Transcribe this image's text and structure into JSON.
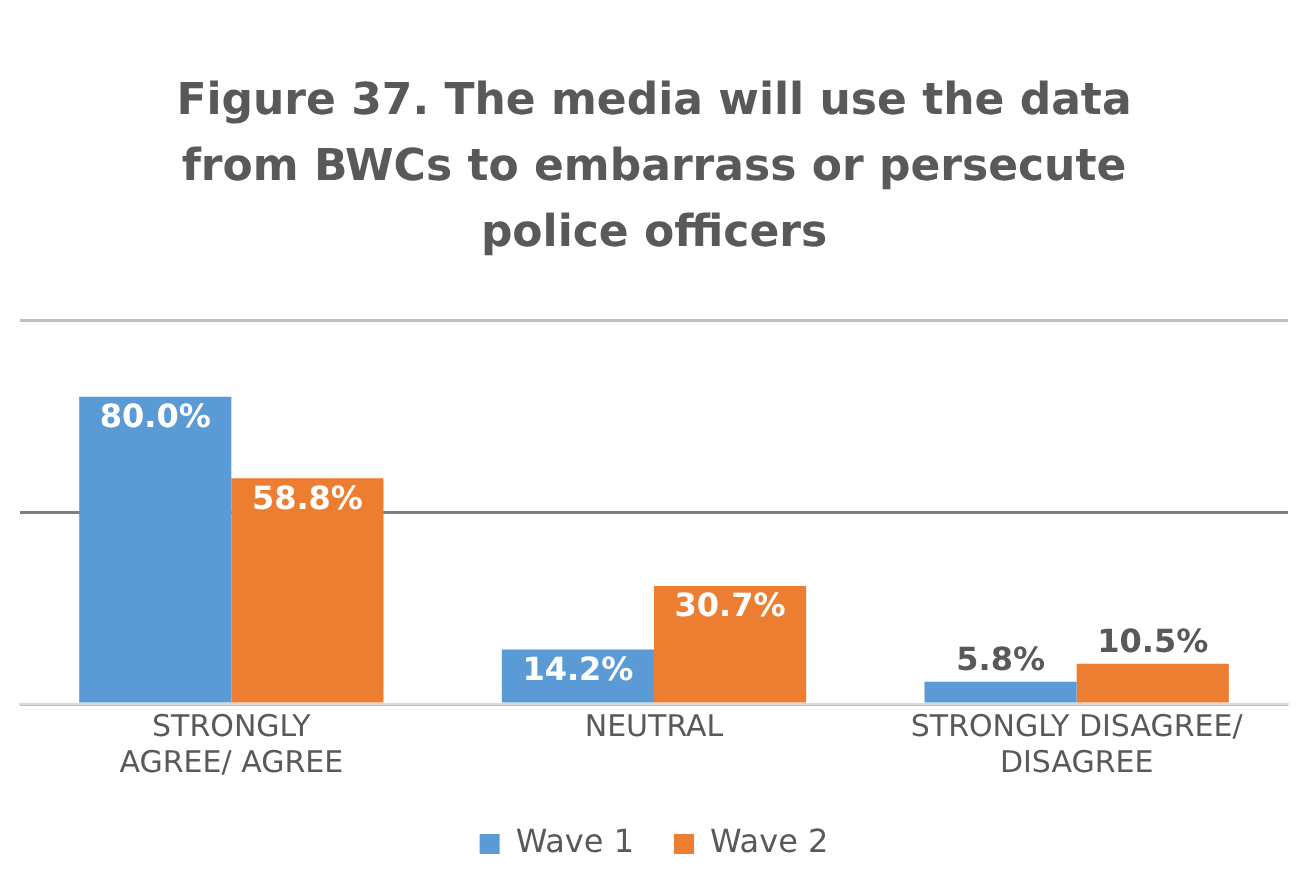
{
  "chart_data": {
    "type": "bar",
    "title": "Figure 37. The media will use the data from BWCs to embarrass or persecute police officers",
    "categories": [
      "STRONGLY AGREE/ AGREE",
      "NEUTRAL",
      "STRONGLY DISAGREE/ DISAGREE"
    ],
    "series": [
      {
        "name": "Wave 1",
        "color": "#5b9bd5",
        "values": [
          80.0,
          14.2,
          5.8
        ],
        "value_labels": [
          "80.0%",
          "14.2%",
          "5.8%"
        ]
      },
      {
        "name": "Wave 2",
        "color": "#ed7d31",
        "values": [
          58.8,
          30.7,
          10.5
        ],
        "value_labels": [
          "58.8%",
          "30.7%",
          "10.5%"
        ]
      }
    ],
    "ylim": [
      0,
      100
    ],
    "yticks": [
      {
        "value": 0,
        "label": null
      },
      {
        "value": 50,
        "label": null
      },
      {
        "value": 100,
        "label": null
      }
    ],
    "grid": "y",
    "legend": "bottom",
    "tick_labels": "x"
  }
}
